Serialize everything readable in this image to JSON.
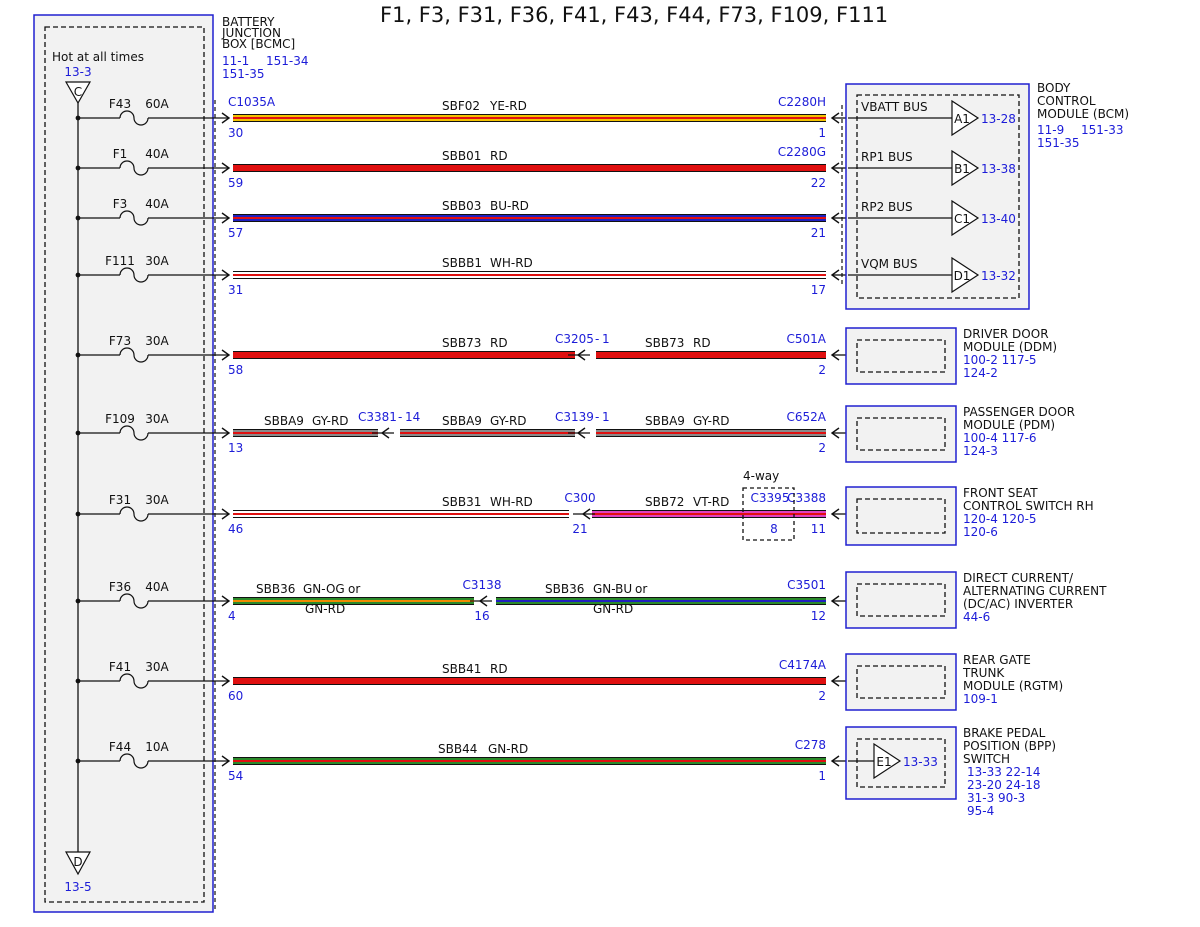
{
  "title": "F1, F3, F31, F36, F41, F43, F44, F73, F109, F111",
  "bjb": {
    "label_lines": [
      "BATTERY",
      "JUNCTION",
      "BOX [BCMC]"
    ],
    "refs": [
      "11-1",
      "151-34",
      "151-35"
    ],
    "hot_text": "Hot at all times",
    "top_ref": "13-3",
    "top_conn": "C",
    "bottom_conn": "D",
    "bottom_ref": "13-5"
  },
  "colors": {
    "YE": "#f2c200",
    "RD": "#e01010",
    "BU": "#2020c0",
    "WH": "#ffffff",
    "GY": "#8a8a8a",
    "VT": "#e040c0",
    "GN": "#2a8a2a",
    "OG": "#f08a00",
    "frame": "#2020d0",
    "ref": "#1c1cd8"
  },
  "rows": [
    {
      "fuse": "F43",
      "amp": "60A",
      "in_conn": "C1035A",
      "in_pin": "30",
      "segments": [
        {
          "circuit": "SBF02",
          "color": "YE-RD",
          "base": "YE",
          "stripe": "RD"
        }
      ],
      "out_conn": "C2280H",
      "out_pin": "1"
    },
    {
      "fuse": "F1",
      "amp": "40A",
      "in_conn": "",
      "in_pin": "59",
      "segments": [
        {
          "circuit": "SBB01",
          "color": "RD",
          "base": "RD",
          "stripe": ""
        }
      ],
      "out_conn": "C2280G",
      "out_pin": "22"
    },
    {
      "fuse": "F3",
      "amp": "40A",
      "in_conn": "",
      "in_pin": "57",
      "segments": [
        {
          "circuit": "SBB03",
          "color": "BU-RD",
          "base": "BU",
          "stripe": "RD"
        }
      ],
      "out_conn": "",
      "out_pin": "21"
    },
    {
      "fuse": "F111",
      "amp": "30A",
      "in_conn": "",
      "in_pin": "31",
      "segments": [
        {
          "circuit": "SBBB1",
          "color": "WH-RD",
          "base": "WH",
          "stripe": "RD"
        }
      ],
      "out_conn": "",
      "out_pin": "17"
    },
    {
      "fuse": "F73",
      "amp": "30A",
      "in_conn": "",
      "in_pin": "58",
      "segments": [
        {
          "circuit": "SBB73",
          "color": "RD",
          "base": "RD",
          "stripe": ""
        },
        {
          "circuit": "SBB73",
          "color": "RD",
          "base": "RD",
          "stripe": ""
        }
      ],
      "inline": [
        {
          "conn": "C3205",
          "pin": "1"
        }
      ],
      "out_conn": "C501A",
      "out_pin": "2"
    },
    {
      "fuse": "F109",
      "amp": "30A",
      "in_conn": "",
      "in_pin": "13",
      "segments": [
        {
          "circuit": "SBBA9",
          "color": "GY-RD",
          "base": "GY",
          "stripe": "RD"
        },
        {
          "circuit": "SBBA9",
          "color": "GY-RD",
          "base": "GY",
          "stripe": "RD"
        },
        {
          "circuit": "SBBA9",
          "color": "GY-RD",
          "base": "GY",
          "stripe": "RD"
        }
      ],
      "inline": [
        {
          "conn": "C3381",
          "pin": "14"
        },
        {
          "conn": "C3139",
          "pin": "1"
        }
      ],
      "out_conn": "C652A",
      "out_pin": "2"
    },
    {
      "fuse": "F31",
      "amp": "30A",
      "in_conn": "",
      "in_pin": "46",
      "segments": [
        {
          "circuit": "SBB31",
          "color": "WH-RD",
          "base": "WH",
          "stripe": "RD"
        },
        {
          "circuit": "SBB72",
          "color": "VT-RD",
          "base": "VT",
          "stripe": "RD"
        }
      ],
      "inline": [
        {
          "conn": "C300",
          "pin": "21"
        }
      ],
      "splice": {
        "note": "4-way",
        "conn": "C3395",
        "pin": "8"
      },
      "out_conn": "C3388",
      "out_pin": "11"
    },
    {
      "fuse": "F36",
      "amp": "40A",
      "in_conn": "",
      "in_pin": "4",
      "segments": [
        {
          "circuit": "SBB36",
          "color": "GN-OG",
          "color_alt": "GN-RD",
          "base": "GN",
          "stripe": "OG"
        },
        {
          "circuit": "SBB36",
          "color": "GN-BU",
          "color_alt": "GN-RD",
          "base": "GN",
          "stripe": "BU"
        }
      ],
      "or_text": "or",
      "inline": [
        {
          "conn": "C3138",
          "pin": "16"
        }
      ],
      "out_conn": "C3501",
      "out_pin": "12"
    },
    {
      "fuse": "F41",
      "amp": "30A",
      "in_conn": "",
      "in_pin": "60",
      "segments": [
        {
          "circuit": "SBB41",
          "color": "RD",
          "base": "RD",
          "stripe": ""
        }
      ],
      "out_conn": "C4174A",
      "out_pin": "2"
    },
    {
      "fuse": "F44",
      "amp": "10A",
      "in_conn": "",
      "in_pin": "54",
      "segments": [
        {
          "circuit": "SBB44",
          "color": "GN-RD",
          "base": "GN",
          "stripe": "RD"
        }
      ],
      "out_conn": "C278",
      "out_pin": "1"
    }
  ],
  "bcm": {
    "label_lines": [
      "BODY",
      "CONTROL",
      "MODULE (BCM)"
    ],
    "refs": [
      "11-9",
      "151-33",
      "151-35"
    ],
    "buses": [
      {
        "name": "VBATT BUS",
        "pin": "A1",
        "ref": "13-28"
      },
      {
        "name": "RP1 BUS",
        "pin": "B1",
        "ref": "13-38"
      },
      {
        "name": "RP2 BUS",
        "pin": "C1",
        "ref": "13-40"
      },
      {
        "name": "VQM BUS",
        "pin": "D1",
        "ref": "13-32"
      }
    ]
  },
  "modules": [
    {
      "lines": [
        "DRIVER DOOR",
        "MODULE (DDM)"
      ],
      "refs": [
        "100-2  117-5",
        "124-2"
      ]
    },
    {
      "lines": [
        "PASSENGER DOOR",
        "MODULE (PDM)"
      ],
      "refs": [
        "100-4  117-6",
        "124-3"
      ]
    },
    {
      "lines": [
        "FRONT SEAT",
        "CONTROL SWITCH RH"
      ],
      "refs": [
        "120-4  120-5",
        "120-6"
      ]
    },
    {
      "lines": [
        "DIRECT CURRENT/",
        "ALTERNATING CURRENT",
        "(DC/AC) INVERTER"
      ],
      "refs": [
        "44-6"
      ]
    },
    {
      "lines": [
        "REAR GATE",
        "TRUNK",
        "MODULE (RGTM)"
      ],
      "refs": [
        "109-1"
      ]
    },
    {
      "lines": [
        "BRAKE PEDAL",
        "POSITION (BPP)",
        "SWITCH"
      ],
      "refs": [
        "13-33  22-14",
        "23-20  24-18",
        "31-3  90-3",
        "95-4"
      ],
      "pin": "E1",
      "pin_ref": "13-33"
    }
  ]
}
